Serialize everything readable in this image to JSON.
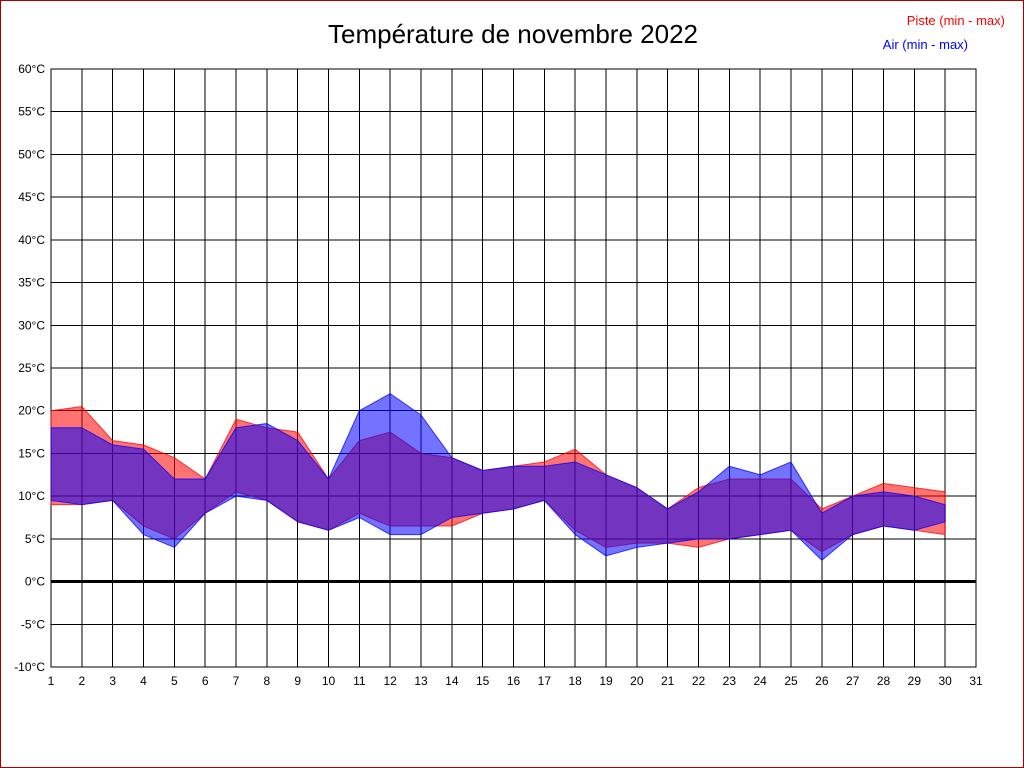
{
  "title": "Température de novembre 2022",
  "legend": {
    "piste_label": "Piste (min - max)",
    "air_label": "Air (min - max)"
  },
  "colors": {
    "piste": "#ff0000",
    "air": "#0000ff",
    "band_opacity": 0.55,
    "grid": "#000000",
    "zero_line": "#000000",
    "frame_border": "#aa0000"
  },
  "chart_data": {
    "type": "area",
    "title": "Température de novembre 2022",
    "xlabel": "",
    "ylabel": "",
    "x_days": [
      1,
      2,
      3,
      4,
      5,
      6,
      7,
      8,
      9,
      10,
      11,
      12,
      13,
      14,
      15,
      16,
      17,
      18,
      19,
      20,
      21,
      22,
      23,
      24,
      25,
      26,
      27,
      28,
      29,
      30
    ],
    "x_tick_labels": [
      1,
      2,
      3,
      4,
      5,
      6,
      7,
      8,
      9,
      10,
      11,
      12,
      13,
      14,
      15,
      16,
      17,
      18,
      19,
      20,
      21,
      22,
      23,
      24,
      25,
      26,
      27,
      28,
      29,
      30,
      31
    ],
    "xlim": [
      1,
      31
    ],
    "ylim": [
      -10,
      60
    ],
    "ytick_step": 5,
    "ytick_unit": "°C",
    "grid": true,
    "legend_position": "top-right",
    "series": [
      {
        "name": "Piste (min - max)",
        "color": "#ff0000",
        "min": [
          9,
          9,
          9.5,
          6.5,
          5,
          8,
          10.5,
          9.5,
          7,
          6,
          8,
          6.5,
          6.5,
          6.5,
          8,
          8.5,
          9.5,
          6,
          4,
          4.5,
          4.5,
          4,
          5,
          5.5,
          6,
          3.5,
          5.5,
          6.5,
          6,
          5.5
        ],
        "max": [
          20,
          20.5,
          16.5,
          16,
          14.5,
          12,
          19,
          18,
          17.5,
          12,
          16.5,
          17.5,
          15,
          14.5,
          13,
          13.5,
          14,
          15.5,
          12.5,
          11,
          8.5,
          11,
          12,
          12,
          12,
          8.5,
          10,
          11.5,
          11,
          10.5
        ]
      },
      {
        "name": "Air (min - max)",
        "color": "#0000ff",
        "min": [
          9.5,
          9,
          9.5,
          5.5,
          4,
          8,
          10,
          9.5,
          7,
          6,
          7.5,
          5.5,
          5.5,
          7.5,
          8,
          8.5,
          9.5,
          5.5,
          3,
          4,
          4.5,
          5,
          5,
          5.5,
          6,
          2.5,
          5.5,
          6.5,
          6,
          7
        ],
        "max": [
          18,
          18,
          16,
          15.5,
          12,
          12,
          18,
          18.5,
          16.5,
          12,
          20,
          22,
          19.5,
          14.5,
          13,
          13.5,
          13.5,
          14,
          12.5,
          11,
          8.5,
          10.5,
          13.5,
          12.5,
          14,
          8,
          10,
          10.5,
          10,
          9
        ]
      }
    ]
  }
}
